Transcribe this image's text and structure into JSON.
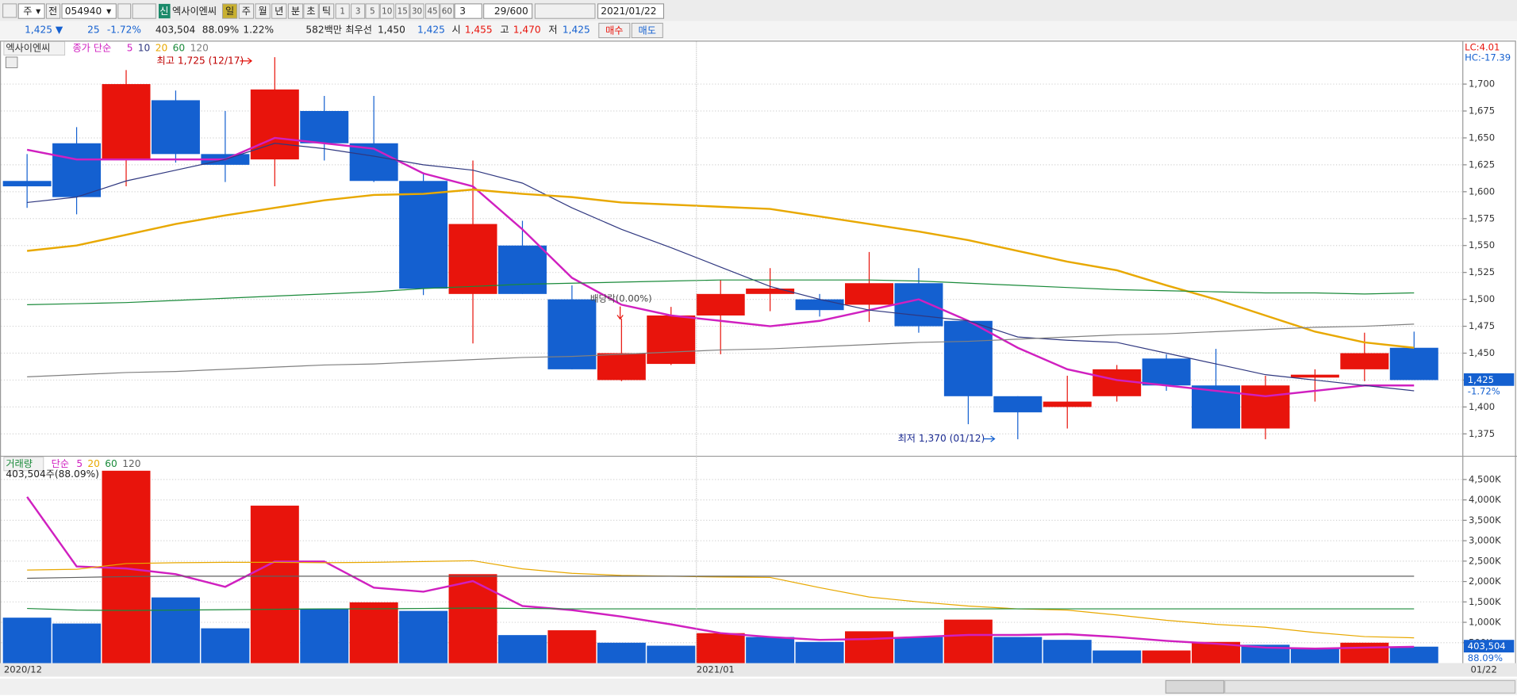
{
  "toolbar": {
    "market": "주",
    "exchange": "전",
    "code": "054940",
    "badge": "신",
    "name": "엑사이엔씨",
    "periods": [
      "일",
      "주",
      "월",
      "년",
      "분",
      "초",
      "틱"
    ],
    "intervals": [
      "1",
      "3",
      "5",
      "10",
      "15",
      "30",
      "45",
      "60"
    ],
    "interval_select": "3",
    "count": "29/600",
    "date": "2021/01/22"
  },
  "quote": {
    "price": "1,425 ▼",
    "change": "25",
    "change_rate": "-1.72%",
    "volume": "403,504",
    "volume_ratio": "88.09%",
    "turnover": "1.22%",
    "amount": "582백만",
    "best_label": "최우선",
    "ask": "1,450",
    "bid": "1,425",
    "open_label": "시",
    "open": "1,455",
    "high_label": "고",
    "high": "1,470",
    "low_label": "저",
    "low": "1,425",
    "buy": "매수",
    "sell": "매도"
  },
  "chart_data": [
    {
      "type": "candlestick",
      "title": "엑사이엔씨",
      "indicator": "종가 단순",
      "open": [
        1610,
        1645,
        1630,
        1685,
        1635,
        1630,
        1675,
        1645,
        1610,
        1505,
        1550,
        1500,
        1425,
        1440,
        1485,
        1505,
        1500,
        1495,
        1515,
        1480,
        1410,
        1400,
        1410,
        1445,
        1420,
        1380,
        1430,
        1435,
        1455
      ],
      "high": [
        1635,
        1660,
        1713,
        1694,
        1675,
        1725,
        1689,
        1689,
        1618,
        1629,
        1573,
        1513,
        1482,
        1493,
        1518,
        1529,
        1505,
        1544,
        1529,
        1480,
        1410,
        1429,
        1439,
        1449,
        1454,
        1429,
        1435,
        1469,
        1470
      ],
      "low": [
        1585,
        1579,
        1605,
        1627,
        1609,
        1605,
        1629,
        1609,
        1504,
        1459,
        1505,
        1435,
        1424,
        1439,
        1449,
        1489,
        1484,
        1479,
        1469,
        1384,
        1370,
        1380,
        1405,
        1415,
        1380,
        1370,
        1405,
        1424,
        1425
      ],
      "close": [
        1605,
        1595,
        1700,
        1635,
        1625,
        1695,
        1645,
        1610,
        1510,
        1570,
        1505,
        1435,
        1450,
        1485,
        1505,
        1510,
        1490,
        1515,
        1475,
        1410,
        1395,
        1405,
        1435,
        1420,
        1380,
        1420,
        1430,
        1450,
        1425
      ],
      "up_color": "#e8140c",
      "down_color": "#1460d0",
      "series": [
        {
          "name": "5",
          "color": "#d020c0",
          "values": [
            1639,
            1630,
            1630,
            1630,
            1630,
            1650,
            1645,
            1640,
            1617,
            1605,
            1565,
            1520,
            1495,
            1485,
            1480,
            1475,
            1480,
            1490,
            1500,
            1480,
            1455,
            1435,
            1425,
            1420,
            1415,
            1410,
            1415,
            1420,
            1420
          ]
        },
        {
          "name": "10",
          "color": "#303880",
          "values": [
            1590,
            1595,
            1610,
            1620,
            1630,
            1645,
            1640,
            1633,
            1625,
            1620,
            1608,
            1585,
            1565,
            1548,
            1530,
            1512,
            1500,
            1490,
            1485,
            1480,
            1465,
            1462,
            1460,
            1450,
            1440,
            1430,
            1425,
            1420,
            1415
          ]
        },
        {
          "name": "20",
          "color": "#e8a800",
          "values": [
            1545,
            1550,
            1560,
            1570,
            1578,
            1585,
            1592,
            1597,
            1598,
            1602,
            1598,
            1595,
            1590,
            1588,
            1586,
            1584,
            1577,
            1570,
            1563,
            1555,
            1545,
            1535,
            1527,
            1513,
            1500,
            1485,
            1470,
            1460,
            1455
          ]
        },
        {
          "name": "60",
          "color": "#1a8a3a",
          "values": [
            1495,
            1496,
            1497,
            1499,
            1501,
            1503,
            1505,
            1507,
            1510,
            1512,
            1514,
            1515,
            1516,
            1517,
            1518,
            1518,
            1518,
            1518,
            1517,
            1515,
            1513,
            1511,
            1509,
            1508,
            1507,
            1506,
            1506,
            1505,
            1506
          ]
        },
        {
          "name": "120",
          "color": "#808080",
          "values": [
            1428,
            1430,
            1432,
            1433,
            1435,
            1437,
            1439,
            1440,
            1442,
            1444,
            1446,
            1447,
            1449,
            1451,
            1453,
            1454,
            1456,
            1458,
            1460,
            1461,
            1463,
            1465,
            1467,
            1468,
            1470,
            1472,
            1474,
            1475,
            1477
          ]
        }
      ],
      "ylim": [
        1356,
        1735
      ],
      "yticks": [
        {
          "value": 1375,
          "label": "1,375"
        },
        {
          "value": 1400,
          "label": "1,400"
        },
        {
          "value": 1425,
          "label": "1,425"
        },
        {
          "value": 1450,
          "label": "1,450"
        },
        {
          "value": 1475,
          "label": "1,475"
        },
        {
          "value": 1500,
          "label": "1,500"
        },
        {
          "value": 1525,
          "label": "1,525"
        },
        {
          "value": 1550,
          "label": "1,550"
        },
        {
          "value": 1575,
          "label": "1,575"
        },
        {
          "value": 1600,
          "label": "1,600"
        },
        {
          "value": 1625,
          "label": "1,625"
        },
        {
          "value": 1650,
          "label": "1,650"
        },
        {
          "value": 1675,
          "label": "1,675"
        },
        {
          "value": 1700,
          "label": "1,700"
        }
      ],
      "grid": true,
      "annotations": [
        "최고 1,725 (12/17)",
        "최저 1,370 (01/12)",
        "배당락(0.00%)"
      ],
      "corner_labels": [
        "LC:4.01",
        "HC:-17.39"
      ],
      "last_label": "1,425",
      "last_change": "-1.72%"
    },
    {
      "type": "bar",
      "title": "거래량",
      "indicator": "단순",
      "subtitle": "403,504주(88.09%)",
      "categories": [
        "2020/12",
        null,
        null,
        null,
        null,
        null,
        null,
        null,
        null,
        null,
        null,
        null,
        null,
        null,
        "2021/01",
        null,
        null,
        null,
        null,
        null,
        null,
        null,
        null,
        null,
        null,
        null,
        null,
        null,
        "01/22"
      ],
      "values": [
        1114000,
        970000,
        4715000,
        1610000,
        853000,
        3860000,
        1325000,
        1490000,
        1280000,
        2180000,
        687000,
        805000,
        500000,
        427000,
        735000,
        640000,
        520000,
        780000,
        640000,
        1066000,
        640000,
        570000,
        310000,
        310000,
        520000,
        450000,
        355000,
        500000,
        403504
      ],
      "colors": [
        "#1460d0",
        "#1460d0",
        "#e8140c",
        "#1460d0",
        "#1460d0",
        "#e8140c",
        "#1460d0",
        "#e8140c",
        "#1460d0",
        "#e8140c",
        "#1460d0",
        "#e8140c",
        "#1460d0",
        "#1460d0",
        "#e8140c",
        "#1460d0",
        "#1460d0",
        "#e8140c",
        "#1460d0",
        "#e8140c",
        "#1460d0",
        "#1460d0",
        "#1460d0",
        "#e8140c",
        "#e8140c",
        "#1460d0",
        "#1460d0",
        "#e8140c",
        "#1460d0"
      ],
      "series": [
        {
          "name": "5",
          "color": "#d020c0",
          "values": [
            4075000,
            2370000,
            2320000,
            2180000,
            1870000,
            2490000,
            2490000,
            1850000,
            1750000,
            2010000,
            1400000,
            1300000,
            1140000,
            950000,
            735000,
            640000,
            570000,
            590000,
            640000,
            690000,
            690000,
            710000,
            640000,
            545000,
            475000,
            380000,
            355000,
            380000,
            400000
          ]
        },
        {
          "name": "20",
          "color": "#e8a800",
          "values": [
            2280000,
            2300000,
            2440000,
            2460000,
            2470000,
            2470000,
            2460000,
            2470000,
            2490000,
            2510000,
            2310000,
            2200000,
            2150000,
            2130000,
            2110000,
            2100000,
            1850000,
            1620000,
            1500000,
            1400000,
            1330000,
            1300000,
            1180000,
            1050000,
            950000,
            880000,
            750000,
            650000,
            620000
          ]
        },
        {
          "name": "60",
          "color": "#1a8a3a",
          "values": [
            1340000,
            1300000,
            1290000,
            1300000,
            1310000,
            1320000,
            1330000,
            1330000,
            1340000,
            1350000,
            1340000,
            1330000,
            1330000,
            1330000,
            1330000,
            1330000,
            1330000,
            1330000,
            1330000,
            1330000,
            1330000,
            1330000,
            1330000,
            1330000,
            1330000,
            1330000,
            1330000,
            1330000,
            1330000
          ]
        },
        {
          "name": "120",
          "color": "#606060",
          "values": [
            2080000,
            2100000,
            2120000,
            2130000,
            2130000,
            2130000,
            2130000,
            2130000,
            2130000,
            2130000,
            2130000,
            2130000,
            2130000,
            2130000,
            2130000,
            2130000,
            2130000,
            2130000,
            2130000,
            2130000,
            2130000,
            2130000,
            2130000,
            2130000,
            2130000,
            2130000,
            2130000,
            2130000,
            2130000
          ]
        }
      ],
      "ylim": [
        0,
        4975000
      ],
      "yticks": [
        {
          "value": 500000,
          "label": "500K"
        },
        {
          "value": 1000000,
          "label": "1,000K"
        },
        {
          "value": 1500000,
          "label": "1,500K"
        },
        {
          "value": 2000000,
          "label": "2,000K"
        },
        {
          "value": 2500000,
          "label": "2,500K"
        },
        {
          "value": 3000000,
          "label": "3,000K"
        },
        {
          "value": 3500000,
          "label": "3,500K"
        },
        {
          "value": 4000000,
          "label": "4,000K"
        },
        {
          "value": 4500000,
          "label": "4,500K"
        }
      ],
      "grid": true,
      "last_label": "403,504",
      "last_ratio": "88.09%"
    }
  ]
}
